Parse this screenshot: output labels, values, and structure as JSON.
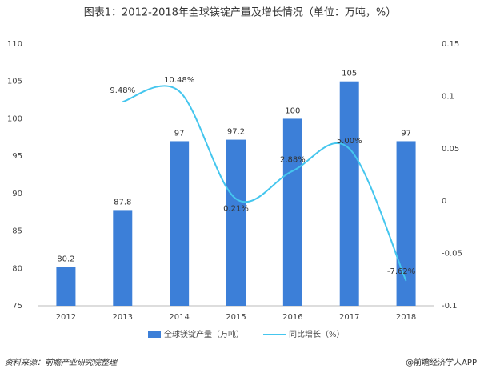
{
  "chart_data": {
    "type": "bar-line",
    "title": "图表1：2012-2018年全球镁锭产量及增长情况（单位：万吨，%）",
    "categories": [
      "2012",
      "2013",
      "2014",
      "2015",
      "2016",
      "2017",
      "2018"
    ],
    "series": [
      {
        "name": "全球镁锭产量（万吨）",
        "type": "bar",
        "color": "#3c7fd8",
        "values": [
          80.2,
          87.8,
          97,
          97.2,
          100,
          105,
          97
        ]
      },
      {
        "name": "同比增长（%）",
        "type": "line",
        "axis": "y2",
        "color": "#45c6ee",
        "values": [
          null,
          0.0948,
          0.1048,
          0.0021,
          0.0288,
          0.05,
          -0.0762
        ],
        "value_labels": [
          null,
          "9.48%",
          "10.48%",
          "0.21%",
          "2.88%",
          "5.00%",
          "-7.62%"
        ]
      }
    ],
    "ylim": [
      75,
      110
    ],
    "yticks": [
      75,
      80,
      85,
      90,
      95,
      100,
      105,
      110
    ],
    "y2lim": [
      -0.1,
      0.15
    ],
    "y2ticks": [
      -0.1,
      -0.05,
      0,
      0.05,
      0.1,
      0.15
    ],
    "source": "资料来源：前瞻产业研究院整理",
    "footer": "@前瞻经济学人APP"
  }
}
